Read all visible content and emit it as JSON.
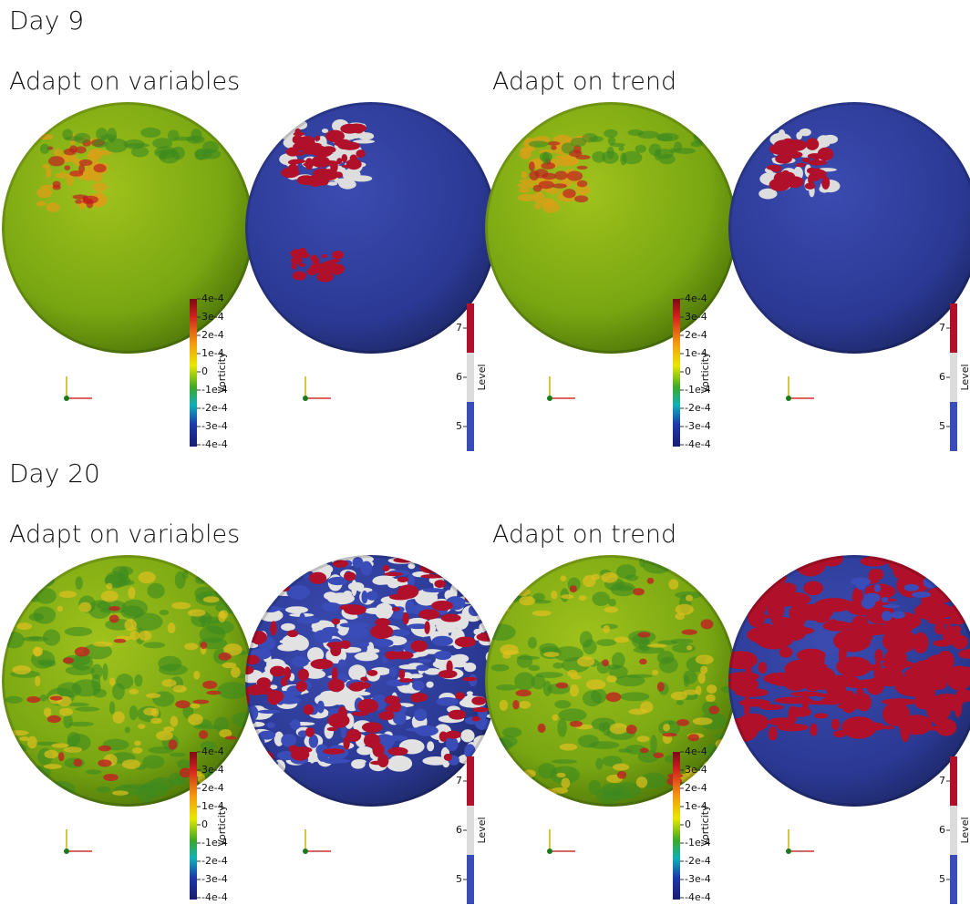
{
  "days": [
    {
      "title": "Day 9",
      "views": [
        {
          "title": "Adapt on variables",
          "vorticity": {
            "label": "Vorticity",
            "ticks": [
              "4e-4",
              "3e-4",
              "2e-4",
              "1e-4",
              "0",
              "-1e-4",
              "-2e-4",
              "-3e-4",
              "-4e-4"
            ]
          },
          "level": {
            "label": "Level",
            "ticks": [
              "7",
              "6",
              "5"
            ]
          }
        },
        {
          "title": "Adapt on trend",
          "vorticity": {
            "label": "Vorticity",
            "ticks": [
              "4e-4",
              "3e-4",
              "2e-4",
              "1e-4",
              "0",
              "-1e-4",
              "-2e-4",
              "-3e-4",
              "-4e-4"
            ]
          },
          "level": {
            "label": "Level",
            "ticks": [
              "7",
              "6",
              "5"
            ]
          }
        }
      ]
    },
    {
      "title": "Day 20",
      "views": [
        {
          "title": "Adapt on variables",
          "vorticity": {
            "label": "Vorticity",
            "ticks": [
              "4e-4",
              "3e-4",
              "2e-4",
              "1e-4",
              "0",
              "-1e-4",
              "-2e-4",
              "-3e-4",
              "-4e-4"
            ]
          },
          "level": {
            "label": "Level",
            "ticks": [
              "7",
              "6",
              "5"
            ]
          }
        },
        {
          "title": "Adapt on trend",
          "vorticity": {
            "label": "Vorticity",
            "ticks": [
              "4e-4",
              "3e-4",
              "2e-4",
              "1e-4",
              "0",
              "-1e-4",
              "-2e-4",
              "-3e-4",
              "-4e-4"
            ]
          },
          "level": {
            "label": "Level",
            "ticks": [
              "7",
              "6",
              "5"
            ]
          }
        }
      ]
    }
  ]
}
